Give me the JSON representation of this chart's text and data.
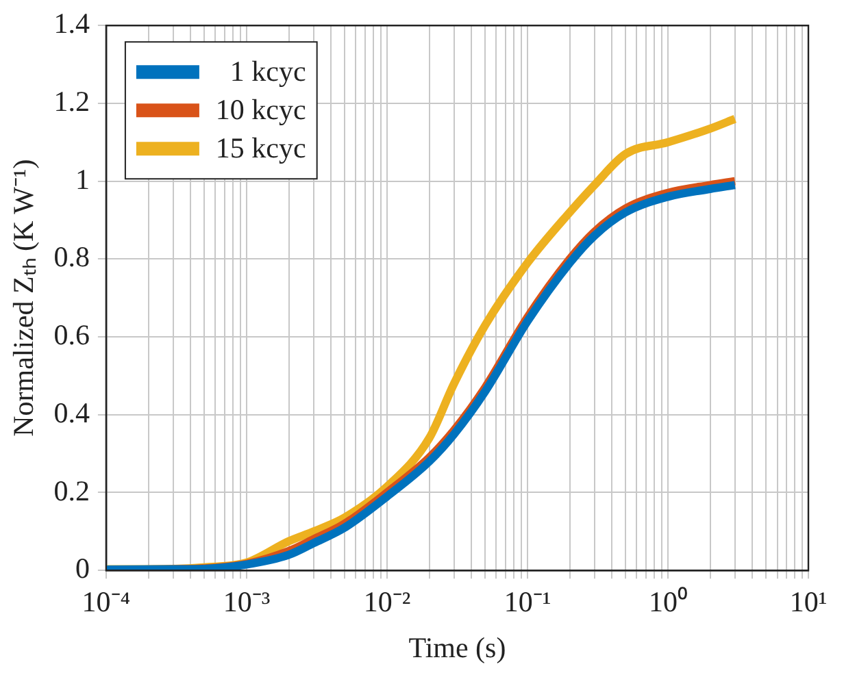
{
  "chart_data": {
    "type": "line",
    "xlabel": "Time (s)",
    "ylabel": "Normalized Zₜₕ (K W⁻¹)",
    "xlim": [
      0.0001,
      10
    ],
    "ylim": [
      0,
      1.4
    ],
    "log": "x",
    "xticks": [
      {
        "value": 0.0001,
        "label": "10⁻⁴"
      },
      {
        "value": 0.0002,
        "label": null
      },
      {
        "value": 0.0003,
        "label": null
      },
      {
        "value": 0.0004,
        "label": null
      },
      {
        "value": 0.0005,
        "label": null
      },
      {
        "value": 0.0006,
        "label": null
      },
      {
        "value": 0.0007,
        "label": null
      },
      {
        "value": 0.0008,
        "label": null
      },
      {
        "value": 0.0009,
        "label": null
      },
      {
        "value": 0.001,
        "label": "10⁻³"
      },
      {
        "value": 0.002,
        "label": null
      },
      {
        "value": 0.003,
        "label": null
      },
      {
        "value": 0.004,
        "label": null
      },
      {
        "value": 0.005,
        "label": null
      },
      {
        "value": 0.006,
        "label": null
      },
      {
        "value": 0.007,
        "label": null
      },
      {
        "value": 0.008,
        "label": null
      },
      {
        "value": 0.009,
        "label": null
      },
      {
        "value": 0.01,
        "label": "10⁻²"
      },
      {
        "value": 0.02,
        "label": null
      },
      {
        "value": 0.03,
        "label": null
      },
      {
        "value": 0.04,
        "label": null
      },
      {
        "value": 0.05,
        "label": null
      },
      {
        "value": 0.06,
        "label": null
      },
      {
        "value": 0.07,
        "label": null
      },
      {
        "value": 0.08,
        "label": null
      },
      {
        "value": 0.09,
        "label": null
      },
      {
        "value": 0.1,
        "label": "10⁻¹"
      },
      {
        "value": 0.2,
        "label": null
      },
      {
        "value": 0.3,
        "label": null
      },
      {
        "value": 0.4,
        "label": null
      },
      {
        "value": 0.5,
        "label": null
      },
      {
        "value": 0.6,
        "label": null
      },
      {
        "value": 0.7,
        "label": null
      },
      {
        "value": 0.8,
        "label": null
      },
      {
        "value": 0.9,
        "label": null
      },
      {
        "value": 1,
        "label": "10⁰"
      },
      {
        "value": 2,
        "label": null
      },
      {
        "value": 3,
        "label": null
      },
      {
        "value": 4,
        "label": null
      },
      {
        "value": 5,
        "label": null
      },
      {
        "value": 6,
        "label": null
      },
      {
        "value": 7,
        "label": null
      },
      {
        "value": 8,
        "label": null
      },
      {
        "value": 9,
        "label": null
      },
      {
        "value": 10,
        "label": "10¹"
      }
    ],
    "yticks": [
      0,
      0.2,
      0.4,
      0.6,
      0.8,
      1,
      {
        "value": 1.2,
        "label": "1.2"
      },
      1.4
    ],
    "grid": true,
    "legend": "top left",
    "marker": "none",
    "line_style": "solid",
    "x": [
      0.0001,
      0.0003,
      0.0005,
      0.001,
      0.002,
      0.003,
      0.005,
      0.01,
      0.02,
      0.03,
      0.05,
      0.1,
      0.2,
      0.3,
      0.5,
      1,
      2,
      3
    ],
    "series": [
      {
        "name": "1 kcyc",
        "color": "#0072bd",
        "values": [
          0.002,
          0.003,
          0.004,
          0.015,
          0.04,
          0.07,
          0.11,
          0.19,
          0.28,
          0.35,
          0.46,
          0.64,
          0.79,
          0.86,
          0.92,
          0.96,
          0.98,
          0.99
        ]
      },
      {
        "name": "10 kcyc",
        "color": "#d95319",
        "values": [
          0.002,
          0.003,
          0.005,
          0.017,
          0.05,
          0.08,
          0.12,
          0.2,
          0.29,
          0.36,
          0.47,
          0.65,
          0.8,
          0.87,
          0.93,
          0.97,
          0.99,
          1.0
        ]
      },
      {
        "name": "15 kcyc",
        "color": "#edb120",
        "values": [
          0.003,
          0.004,
          0.008,
          0.02,
          0.075,
          0.1,
          0.136,
          0.215,
          0.34,
          0.48,
          0.63,
          0.79,
          0.92,
          0.99,
          1.07,
          1.1,
          1.135,
          1.16
        ]
      }
    ]
  }
}
